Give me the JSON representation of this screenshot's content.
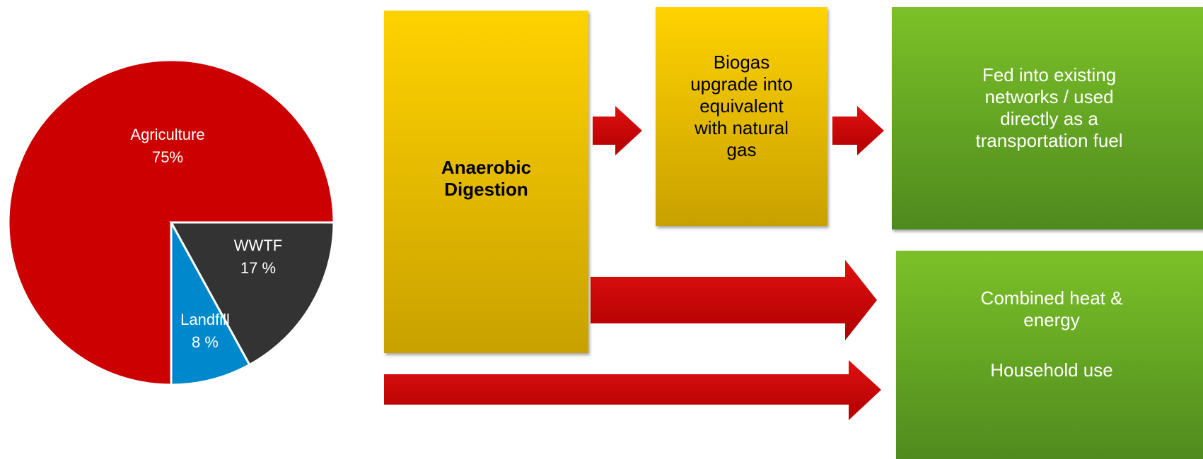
{
  "chart_data": {
    "type": "pie",
    "categories": [
      "Agriculture",
      "WWTF",
      "Landfill"
    ],
    "values": [
      75,
      17,
      8
    ],
    "value_labels": [
      "75%",
      "17 %",
      "8 %"
    ],
    "colors": [
      "#cc0000",
      "#333333",
      "#0088cc"
    ]
  },
  "nodes": [
    {
      "label": "Anaerobic Digestion"
    },
    {
      "label": "Biogas upgrade into equivalent with natural gas"
    },
    {
      "label": "Fed into existing networks / used directly as a transportation fuel"
    },
    {
      "label": "Combined heat & energy"
    },
    {
      "label": "Household use"
    }
  ]
}
